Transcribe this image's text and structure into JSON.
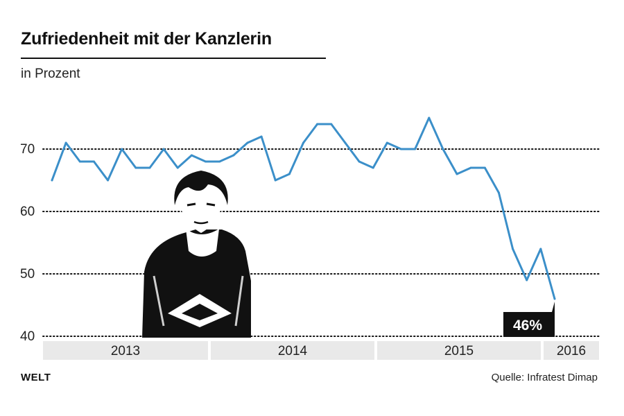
{
  "header": {
    "title": "Zufriedenheit mit der Kanzlerin",
    "subtitle": "in Prozent"
  },
  "footer": {
    "logo": "WELT",
    "source": "Quelle: Infratest Dimap"
  },
  "colors": {
    "line": "#3b8fc9",
    "year_band": "#e9e9e9",
    "label_bg": "#111111",
    "label_text": "#ffffff"
  },
  "chart_data": {
    "type": "line",
    "title": "Zufriedenheit mit der Kanzlerin",
    "ylabel": "in Prozent",
    "ylim": [
      40,
      80
    ],
    "yticks": [
      40,
      50,
      60,
      70
    ],
    "grid": "dotted-horizontal",
    "x_range": [
      2013.0,
      2016.35
    ],
    "years": [
      {
        "label": "2013",
        "start": 2013.0,
        "end": 2014.0
      },
      {
        "label": "2014",
        "start": 2014.0,
        "end": 2015.0
      },
      {
        "label": "2015",
        "start": 2015.0,
        "end": 2016.0
      },
      {
        "label": "2016",
        "start": 2016.0,
        "end": 2016.35
      }
    ],
    "series": [
      {
        "name": "Zufriedenheit",
        "values": [
          65,
          71,
          68,
          68,
          65,
          70,
          67,
          67,
          70,
          67,
          69,
          68,
          68,
          69,
          71,
          72,
          65,
          66,
          71,
          74,
          74,
          71,
          68,
          67,
          71,
          70,
          70,
          75,
          70,
          66,
          67,
          67,
          63,
          54,
          49,
          54,
          46
        ]
      }
    ],
    "end_label": "46%"
  }
}
